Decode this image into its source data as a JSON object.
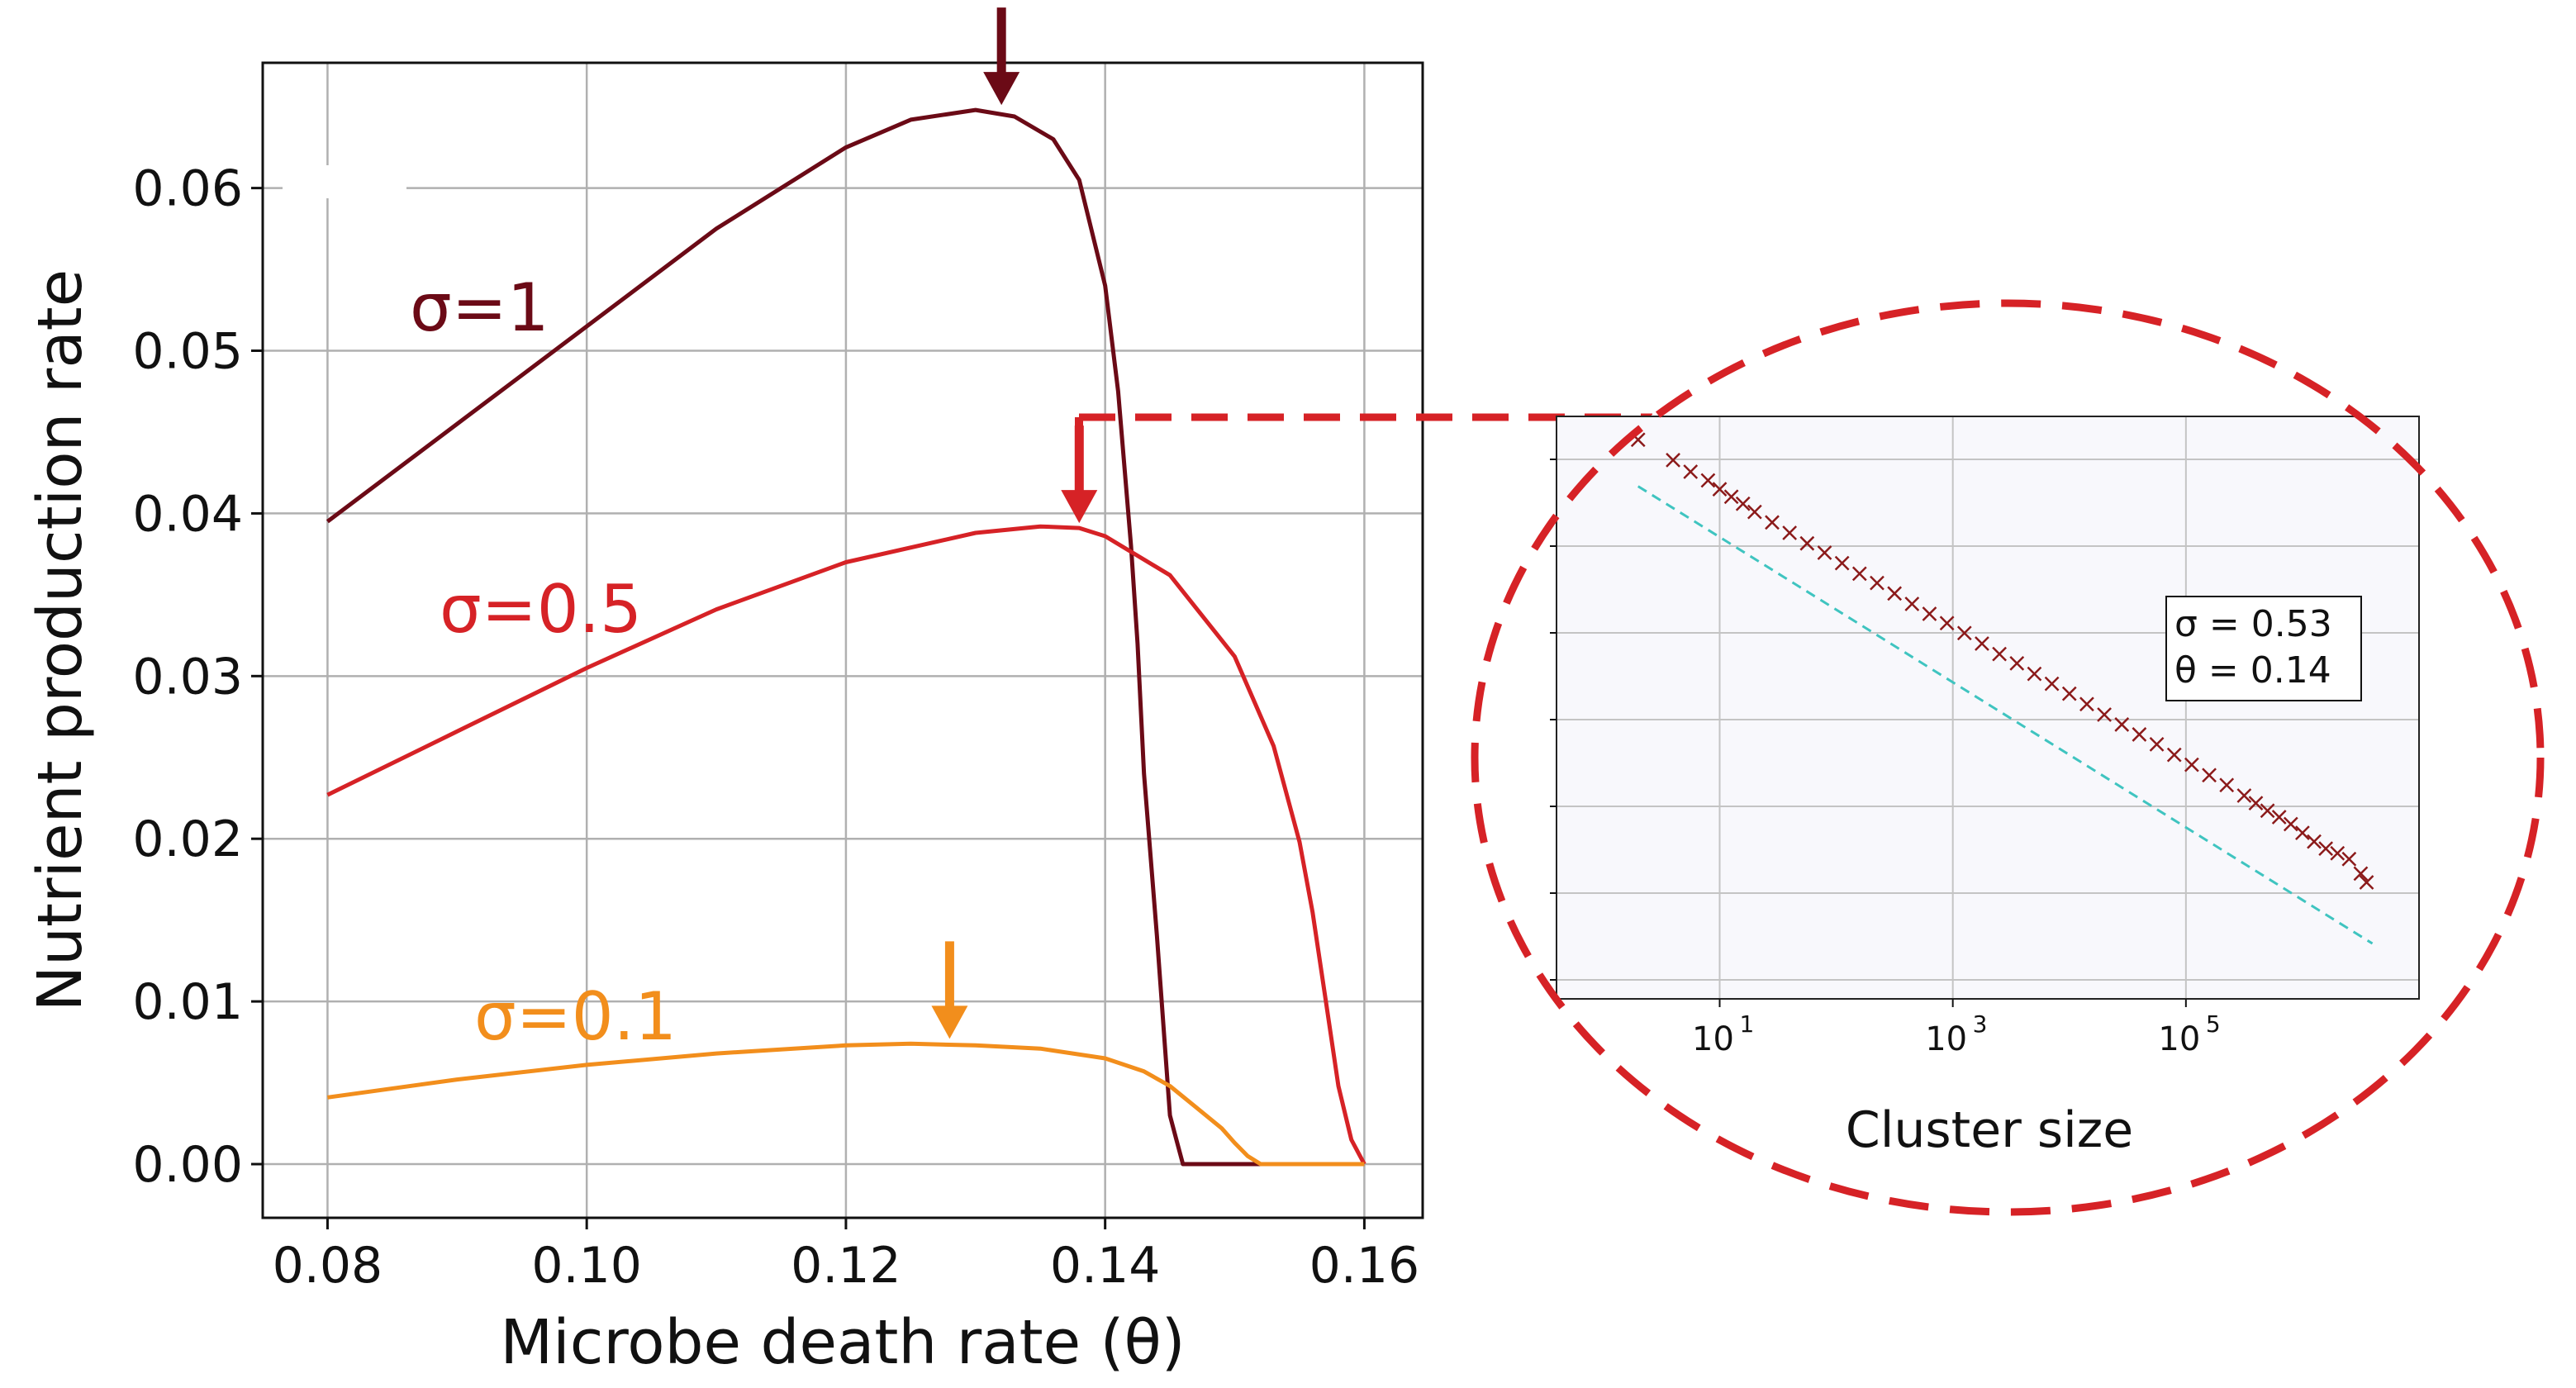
{
  "chart_data": [
    {
      "type": "line",
      "xlabel": "Microbe death rate (θ)",
      "ylabel": "Nutrient production rate",
      "xlim": [
        0.075,
        0.1645
      ],
      "ylim": [
        -0.0033,
        0.0677
      ],
      "xticks": [
        "0.08",
        "0.10",
        "0.12",
        "0.14",
        "0.16"
      ],
      "xtick_values": [
        0.08,
        0.1,
        0.12,
        0.14,
        0.16
      ],
      "yticks": [
        "0.00",
        "0.01",
        "0.02",
        "0.03",
        "0.04",
        "0.05",
        "0.06"
      ],
      "ytick_values": [
        0.0,
        0.01,
        0.02,
        0.03,
        0.04,
        0.05,
        0.06
      ],
      "grid": true,
      "series": [
        {
          "name": "σ=1",
          "color": "#6b0a16",
          "x": [
            0.08,
            0.09,
            0.1,
            0.11,
            0.12,
            0.125,
            0.13,
            0.133,
            0.136,
            0.138,
            0.14,
            0.141,
            0.142,
            0.1425,
            0.143,
            0.144,
            0.145,
            0.1455,
            0.146,
            0.16
          ],
          "y": [
            0.0395,
            0.0455,
            0.0515,
            0.0575,
            0.0625,
            0.0642,
            0.0648,
            0.0644,
            0.063,
            0.0605,
            0.054,
            0.0475,
            0.038,
            0.032,
            0.024,
            0.014,
            0.003,
            0.0015,
            0.0,
            0.0
          ]
        },
        {
          "name": "σ=0.5",
          "color": "#d62226",
          "x": [
            0.08,
            0.09,
            0.1,
            0.11,
            0.12,
            0.13,
            0.135,
            0.138,
            0.14,
            0.145,
            0.15,
            0.153,
            0.155,
            0.156,
            0.157,
            0.158,
            0.159,
            0.16
          ],
          "y": [
            0.0227,
            0.0266,
            0.0305,
            0.0341,
            0.037,
            0.0388,
            0.0392,
            0.0391,
            0.0386,
            0.0362,
            0.0312,
            0.0257,
            0.0198,
            0.0155,
            0.0102,
            0.0048,
            0.0015,
            0.0
          ]
        },
        {
          "name": "σ=0.1",
          "color": "#f28e1c",
          "x": [
            0.08,
            0.09,
            0.1,
            0.11,
            0.12,
            0.125,
            0.13,
            0.135,
            0.14,
            0.143,
            0.145,
            0.147,
            0.149,
            0.15,
            0.151,
            0.152,
            0.16
          ],
          "y": [
            0.0041,
            0.0052,
            0.0061,
            0.0068,
            0.0073,
            0.0074,
            0.0073,
            0.0071,
            0.0065,
            0.0057,
            0.0048,
            0.0035,
            0.0022,
            0.0013,
            0.0005,
            0.0,
            0.0
          ]
        }
      ],
      "annotations": [
        {
          "type": "arrow",
          "color": "#6b0a16",
          "x": 0.132,
          "y": 0.0648
        },
        {
          "type": "arrow",
          "color": "#d62226",
          "x": 0.138,
          "y": 0.0391
        },
        {
          "type": "arrow",
          "color": "#f28e1c",
          "x": 0.128,
          "y": 0.0074
        }
      ]
    },
    {
      "type": "scatter",
      "xlabel": "Cluster size",
      "xscale": "log",
      "yscale": "log",
      "xticks": [
        "10",
        "10",
        "10"
      ],
      "xtick_exponents": [
        "1",
        "3",
        "5"
      ],
      "xtick_log_values": [
        1,
        3,
        5
      ],
      "xlim_log": [
        -0.4,
        7.0
      ],
      "ylim_log": [
        0.0,
        1.0
      ],
      "grid": true,
      "parameters_box": [
        "σ = 0.53",
        "θ = 0.14"
      ],
      "series": [
        {
          "name": "",
          "marker": "x",
          "color": "#8b1a1a",
          "x_log": [
            0.3,
            0.6,
            0.75,
            0.9,
            1.0,
            1.1,
            1.2,
            1.3,
            1.45,
            1.6,
            1.75,
            1.9,
            2.05,
            2.2,
            2.35,
            2.5,
            2.65,
            2.8,
            2.95,
            3.1,
            3.25,
            3.4,
            3.55,
            3.7,
            3.85,
            4.0,
            4.15,
            4.3,
            4.45,
            4.6,
            4.75,
            4.9,
            5.05,
            5.2,
            5.35,
            5.5,
            5.6,
            5.7,
            5.8,
            5.9,
            6.0,
            6.1,
            6.2,
            6.3,
            6.4,
            6.5,
            6.55
          ],
          "y_log": [
            0.96,
            0.925,
            0.905,
            0.89,
            0.875,
            0.862,
            0.85,
            0.836,
            0.818,
            0.8,
            0.782,
            0.766,
            0.748,
            0.73,
            0.714,
            0.696,
            0.678,
            0.661,
            0.645,
            0.628,
            0.61,
            0.592,
            0.576,
            0.558,
            0.541,
            0.524,
            0.506,
            0.488,
            0.471,
            0.454,
            0.437,
            0.419,
            0.402,
            0.384,
            0.367,
            0.349,
            0.336,
            0.323,
            0.312,
            0.3,
            0.285,
            0.27,
            0.258,
            0.25,
            0.24,
            0.215,
            0.2
          ]
        },
        {
          "name": "",
          "style": "dashed",
          "color": "#3fc4c0",
          "x_log": [
            0.3,
            6.6
          ],
          "y_log": [
            0.88,
            0.095
          ]
        }
      ]
    }
  ]
}
